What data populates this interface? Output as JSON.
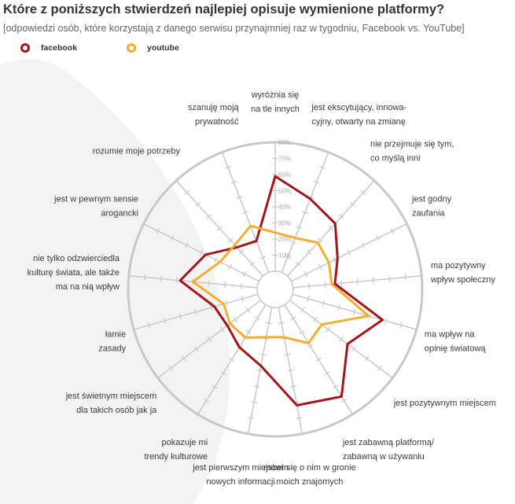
{
  "title": "Które z poniższych stwierdzeń najlepiej opisuje wymienione platformy?",
  "subtitle": "[odpowiedzi osób, które korzystają z danego serwisu przynajmniej raz w tygodniu, Facebook vs. YouTube]",
  "colors": {
    "facebook": "#a3161c",
    "youtube": "#f2ae30",
    "grid": "#c8c8c8",
    "background_shape": "#f3f3f3"
  },
  "chart_data": {
    "type": "radar",
    "title": "Które z poniższych stwierdzeń najlepiej opisuje wymienione platformy?",
    "subtitle": "[odpowiedzi osób, które korzystają z danego serwisu przynajmniej raz w tygodniu, Facebook vs. YouTube]",
    "categories": [
      [
        "wyróżnia się",
        "na tle innych"
      ],
      [
        "jest ekscytujący, innowa-",
        "cyjny, otwarty na zmianę"
      ],
      [
        "nie przejmuje się tym,",
        "co myślą inni"
      ],
      [
        "jest godny",
        "zaufania"
      ],
      [
        "ma pozytywny",
        "wpływ społeczny"
      ],
      [
        "ma wpływ na",
        "opinię światową"
      ],
      [
        "jest pozytywnym miejscem"
      ],
      [
        "jest zabawną platformą/",
        "zabawną w używaniu"
      ],
      [
        "mówi się o nim w gronie",
        "moich znajomych"
      ],
      [
        "jest pierwszym miejscem",
        "nowych informacji"
      ],
      [
        "pokazuje mi",
        "trendy kulturowe"
      ],
      [
        "jest świetnym miejscem",
        "dla takich osób jak ja"
      ],
      [
        "łamie",
        "zasady"
      ],
      [
        "nie tylko odzwierciedla",
        "kulturę świata, ale także",
        "ma na nią wpływ"
      ],
      [
        "jest w pewnym sensie",
        "arogancki"
      ],
      [
        "rozumie moje potrzeby"
      ],
      [
        "szanuję moją",
        "prywatność"
      ]
    ],
    "tick_labels": [
      "10%",
      "20%",
      "30%",
      "40%",
      "50%",
      "60%",
      "70%",
      "80%"
    ],
    "r_range": [
      0,
      80
    ],
    "legend": [
      "facebook",
      "youtube"
    ],
    "legend_position": "top-left",
    "series": [
      {
        "name": "facebook",
        "values": [
          59,
          49,
          44,
          32,
          26,
          58,
          45,
          67,
          62,
          37,
          31,
          26,
          28,
          48,
          37,
          24,
          21
        ]
      },
      {
        "name": "youtube",
        "values": [
          24,
          23,
          28,
          26,
          24,
          49,
          25,
          28,
          19,
          19,
          24,
          24,
          22,
          40,
          27,
          26,
          31
        ]
      }
    ]
  }
}
